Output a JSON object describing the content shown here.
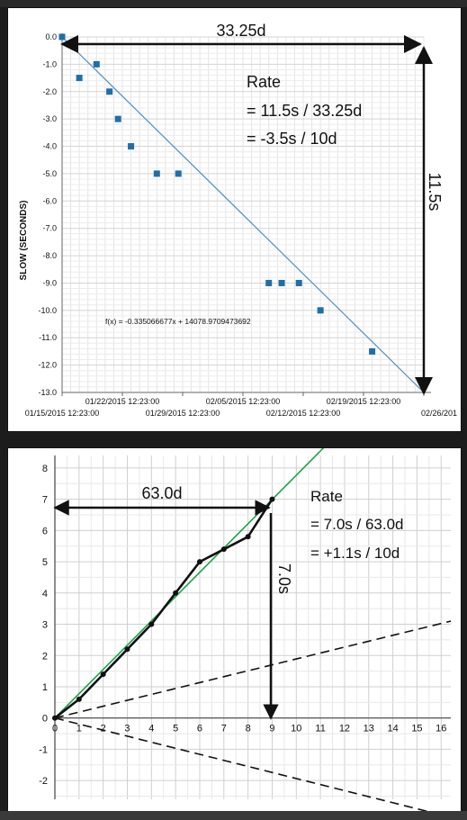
{
  "chart_data": [
    {
      "type": "scatter",
      "ylabel": "SLOW (SECONDS)",
      "ylim": [
        -13,
        0
      ],
      "y_ticks": [
        0,
        -1,
        -2,
        -3,
        -4,
        -5,
        -6,
        -7,
        -8,
        -9,
        -10,
        -11,
        -12,
        -13
      ],
      "y_tick_labels": [
        "0.0",
        "-1.0",
        "-2.0",
        "-3.0",
        "-4.0",
        "-5.0",
        "-6.0",
        "-7.0",
        "-8.0",
        "-9.0",
        "-10.0",
        "-11.0",
        "-12.0",
        "-13.0"
      ],
      "xlim": [
        "2015-01-15T12:23:00",
        "2015-02-26T12:23:00"
      ],
      "x_tick_labels_lower": [
        {
          "x": "2015-01-15T12:23:00",
          "label": "01/15/2015 12:23:00"
        },
        {
          "x": "2015-01-29T12:23:00",
          "label": "01/29/2015 12:23:00"
        },
        {
          "x": "2015-02-12T12:23:00",
          "label": "02/12/2015 12:23:00"
        },
        {
          "x": "2015-02-26T12:23:00",
          "label": "02/26/201"
        }
      ],
      "x_tick_labels_upper": [
        {
          "x": "2015-01-22T12:23:00",
          "label": "01/22/2015 12:23:00"
        },
        {
          "x": "2015-02-05T12:23:00",
          "label": "02/05/2015 12:23:00"
        },
        {
          "x": "2015-02-19T12:23:00",
          "label": "02/19/2015 12:23:00"
        }
      ],
      "grid": true,
      "series": [
        {
          "color": "#1f6eab",
          "points": [
            {
              "x": "2015-01-15T12:23:00",
              "y": 0.0
            },
            {
              "x": "2015-01-17T12:23:00",
              "y": -1.5
            },
            {
              "x": "2015-01-19T12:23:00",
              "y": -1.0
            },
            {
              "x": "2015-01-21T00:23:00",
              "y": -2.0
            },
            {
              "x": "2015-01-22T00:23:00",
              "y": -3.0
            },
            {
              "x": "2015-01-23T12:23:00",
              "y": -4.0
            },
            {
              "x": "2015-01-26T12:23:00",
              "y": -5.0
            },
            {
              "x": "2015-01-29T00:23:00",
              "y": -5.0
            },
            {
              "x": "2015-02-08T12:23:00",
              "y": -9.0
            },
            {
              "x": "2015-02-10T00:23:00",
              "y": -9.0
            },
            {
              "x": "2015-02-12T00:23:00",
              "y": -9.0
            },
            {
              "x": "2015-02-14T12:23:00",
              "y": -10.0
            },
            {
              "x": "2015-02-20T12:23:00",
              "y": -11.5
            }
          ]
        }
      ],
      "trendline": {
        "color": "#4f8fc2",
        "from": {
          "x": "2015-01-15T12:23:00",
          "y": 0.0
        },
        "to": {
          "x": "2015-02-26T12:23:00",
          "y": -13.0
        }
      },
      "formula": "f(x) = -0.335066677x + 14078.9709473692",
      "annotations": {
        "span_label": "33.25d",
        "drop_label": "11.5s",
        "rate_title": "Rate",
        "rate_line1": "= 11.5s / 33.25d",
        "rate_line2": "= -3.5s / 10d"
      }
    },
    {
      "type": "line",
      "xlim": [
        0,
        16.4
      ],
      "ylim": [
        -2.6,
        8.4
      ],
      "x_ticks": [
        0,
        1,
        2,
        3,
        4,
        5,
        6,
        7,
        8,
        9,
        10,
        11,
        12,
        13,
        14,
        15,
        16
      ],
      "x_tick_labels": [
        "0",
        "1",
        "2",
        "3",
        "4",
        "5",
        "6",
        "7",
        "8",
        "9",
        "10",
        "11",
        "12",
        "13",
        "14",
        "15",
        "16"
      ],
      "y_ticks": [
        8,
        7,
        6,
        5,
        4,
        3,
        2,
        1,
        0,
        -1,
        -2
      ],
      "y_tick_labels": [
        "8",
        "7",
        "6",
        "5",
        "4",
        "3",
        "2",
        "1",
        "0",
        "-1",
        "-2"
      ],
      "grid": true,
      "series": [
        {
          "color": "#111111",
          "x": [
            0,
            1,
            2,
            3,
            4,
            5,
            6,
            7,
            8,
            9
          ],
          "y": [
            0,
            0.6,
            1.4,
            2.2,
            3.0,
            4.0,
            5.0,
            5.4,
            5.8,
            7.0
          ]
        }
      ],
      "fit_line": {
        "color": "#1aa34a",
        "x": [
          0,
          11.2
        ],
        "y": [
          0,
          8.7
        ]
      },
      "dashed_lines": [
        {
          "color": "#111111",
          "x": [
            0,
            16.4
          ],
          "y": [
            0,
            3.1
          ]
        },
        {
          "color": "#111111",
          "x": [
            0,
            15.5
          ],
          "y": [
            0,
            -3.0
          ]
        }
      ],
      "annotations": {
        "span_label": "63.0d",
        "drop_label": "7.0s",
        "rate_title": "Rate",
        "rate_line1": "= 7.0s / 63.0d",
        "rate_line2": "= +1.1s / 10d"
      }
    }
  ]
}
